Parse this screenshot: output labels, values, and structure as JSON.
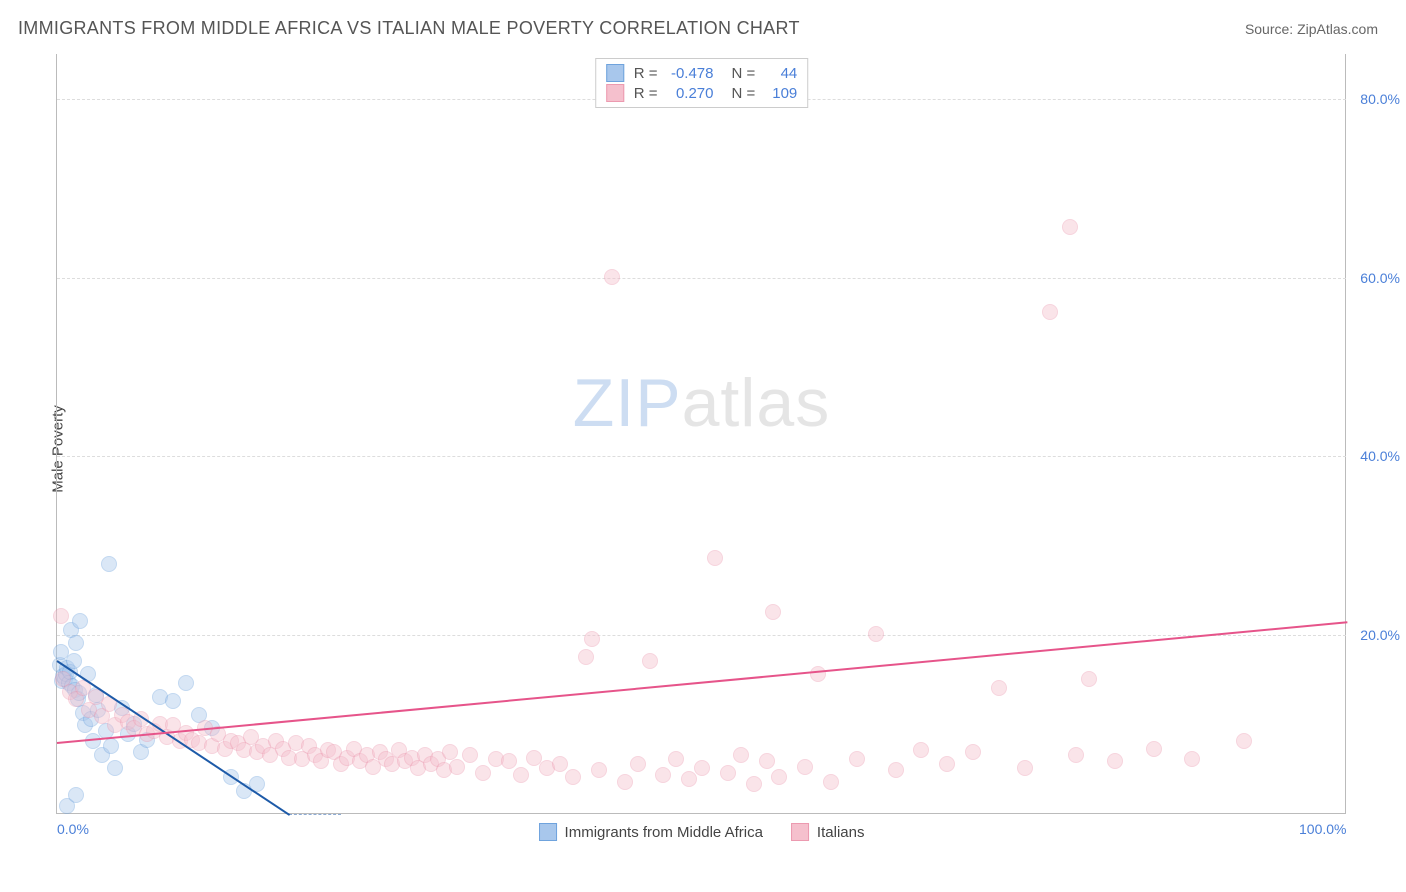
{
  "header": {
    "title": "IMMIGRANTS FROM MIDDLE AFRICA VS ITALIAN MALE POVERTY CORRELATION CHART",
    "source": "Source: ZipAtlas.com"
  },
  "ylabel": "Male Poverty",
  "watermark": {
    "part1": "ZIP",
    "part2": "atlas"
  },
  "chart": {
    "type": "scatter",
    "xlim": [
      0,
      100
    ],
    "ylim": [
      0,
      85
    ],
    "xticks": [
      {
        "v": 0,
        "label": "0.0%"
      },
      {
        "v": 100,
        "label": "100.0%"
      }
    ],
    "yticks": [
      {
        "v": 20,
        "label": "20.0%"
      },
      {
        "v": 40,
        "label": "40.0%"
      },
      {
        "v": 60,
        "label": "60.0%"
      },
      {
        "v": 80,
        "label": "80.0%"
      }
    ],
    "grid_color": "#dddddd",
    "axis_color": "#bbbbbb",
    "background_color": "#ffffff",
    "marker_radius": 8,
    "marker_opacity": 0.42,
    "series": [
      {
        "name": "Immigrants from Middle Africa",
        "color_fill": "#a8c7ec",
        "color_stroke": "#6fa3dd",
        "r": -0.478,
        "n": 44,
        "trend": {
          "x1": 0,
          "y1": 17.2,
          "x2": 18,
          "y2": 0,
          "color": "#1d5aa8",
          "extend_dash_to": 22
        },
        "points": [
          [
            0.2,
            16.5
          ],
          [
            0.3,
            18.0
          ],
          [
            0.4,
            14.8
          ],
          [
            0.5,
            15.3
          ],
          [
            0.6,
            15.0
          ],
          [
            0.7,
            15.6
          ],
          [
            0.8,
            16.2
          ],
          [
            0.9,
            14.5
          ],
          [
            1.0,
            15.8
          ],
          [
            1.1,
            20.5
          ],
          [
            1.2,
            14.2
          ],
          [
            1.3,
            17.0
          ],
          [
            1.4,
            13.8
          ],
          [
            1.5,
            19.0
          ],
          [
            1.6,
            12.8
          ],
          [
            1.7,
            13.4
          ],
          [
            1.8,
            21.5
          ],
          [
            2.0,
            11.2
          ],
          [
            2.2,
            9.8
          ],
          [
            2.4,
            15.5
          ],
          [
            2.6,
            10.5
          ],
          [
            2.8,
            8.0
          ],
          [
            3.0,
            13.2
          ],
          [
            3.2,
            11.5
          ],
          [
            3.5,
            6.5
          ],
          [
            3.8,
            9.2
          ],
          [
            4.0,
            27.8
          ],
          [
            4.2,
            7.5
          ],
          [
            4.5,
            5.0
          ],
          [
            5.0,
            11.8
          ],
          [
            5.5,
            8.8
          ],
          [
            6.0,
            10.0
          ],
          [
            6.5,
            6.8
          ],
          [
            7.0,
            8.2
          ],
          [
            8.0,
            13.0
          ],
          [
            9.0,
            12.5
          ],
          [
            10.0,
            14.5
          ],
          [
            11.0,
            11.0
          ],
          [
            12.0,
            9.5
          ],
          [
            13.5,
            4.0
          ],
          [
            14.5,
            2.5
          ],
          [
            15.5,
            3.2
          ],
          [
            0.8,
            0.8
          ],
          [
            1.5,
            2.0
          ]
        ]
      },
      {
        "name": "Italians",
        "color_fill": "#f5c0cd",
        "color_stroke": "#ec9ab0",
        "r": 0.27,
        "n": 109,
        "trend": {
          "x1": 0,
          "y1": 8.0,
          "x2": 100,
          "y2": 21.5,
          "color": "#e6548a"
        },
        "points": [
          [
            0.3,
            22.0
          ],
          [
            0.5,
            15.0
          ],
          [
            1.0,
            13.5
          ],
          [
            1.5,
            12.8
          ],
          [
            2.0,
            14.0
          ],
          [
            2.5,
            11.5
          ],
          [
            3.0,
            13.0
          ],
          [
            3.5,
            10.8
          ],
          [
            4.0,
            12.2
          ],
          [
            4.5,
            9.8
          ],
          [
            5.0,
            11.0
          ],
          [
            5.5,
            10.2
          ],
          [
            6.0,
            9.5
          ],
          [
            6.5,
            10.5
          ],
          [
            7.0,
            8.8
          ],
          [
            7.5,
            9.2
          ],
          [
            8.0,
            10.0
          ],
          [
            8.5,
            8.5
          ],
          [
            9.0,
            9.8
          ],
          [
            9.5,
            8.0
          ],
          [
            10.0,
            9.0
          ],
          [
            10.5,
            8.2
          ],
          [
            11.0,
            7.8
          ],
          [
            11.5,
            9.5
          ],
          [
            12.0,
            7.5
          ],
          [
            12.5,
            8.8
          ],
          [
            13.0,
            7.2
          ],
          [
            13.5,
            8.0
          ],
          [
            14.0,
            7.8
          ],
          [
            14.5,
            7.0
          ],
          [
            15.0,
            8.5
          ],
          [
            15.5,
            6.8
          ],
          [
            16.0,
            7.5
          ],
          [
            16.5,
            6.5
          ],
          [
            17.0,
            8.0
          ],
          [
            17.5,
            7.2
          ],
          [
            18.0,
            6.2
          ],
          [
            18.5,
            7.8
          ],
          [
            19.0,
            6.0
          ],
          [
            19.5,
            7.5
          ],
          [
            20.0,
            6.5
          ],
          [
            20.5,
            5.8
          ],
          [
            21.0,
            7.0
          ],
          [
            21.5,
            6.8
          ],
          [
            22.0,
            5.5
          ],
          [
            22.5,
            6.2
          ],
          [
            23.0,
            7.2
          ],
          [
            23.5,
            5.8
          ],
          [
            24.0,
            6.5
          ],
          [
            24.5,
            5.2
          ],
          [
            25.0,
            6.8
          ],
          [
            25.5,
            6.0
          ],
          [
            26.0,
            5.5
          ],
          [
            26.5,
            7.0
          ],
          [
            27.0,
            5.8
          ],
          [
            27.5,
            6.2
          ],
          [
            28.0,
            5.0
          ],
          [
            28.5,
            6.5
          ],
          [
            29.0,
            5.5
          ],
          [
            29.5,
            6.0
          ],
          [
            30.0,
            4.8
          ],
          [
            30.5,
            6.8
          ],
          [
            31.0,
            5.2
          ],
          [
            32.0,
            6.5
          ],
          [
            33.0,
            4.5
          ],
          [
            34.0,
            6.0
          ],
          [
            35.0,
            5.8
          ],
          [
            36.0,
            4.2
          ],
          [
            37.0,
            6.2
          ],
          [
            38.0,
            5.0
          ],
          [
            39.0,
            5.5
          ],
          [
            40.0,
            4.0
          ],
          [
            41.0,
            17.5
          ],
          [
            41.5,
            19.5
          ],
          [
            42.0,
            4.8
          ],
          [
            43.0,
            60.0
          ],
          [
            44.0,
            3.5
          ],
          [
            45.0,
            5.5
          ],
          [
            46.0,
            17.0
          ],
          [
            47.0,
            4.2
          ],
          [
            48.0,
            6.0
          ],
          [
            49.0,
            3.8
          ],
          [
            50.0,
            5.0
          ],
          [
            51.0,
            28.5
          ],
          [
            52.0,
            4.5
          ],
          [
            53.0,
            6.5
          ],
          [
            54.0,
            3.2
          ],
          [
            55.0,
            5.8
          ],
          [
            55.5,
            22.5
          ],
          [
            56.0,
            4.0
          ],
          [
            58.0,
            5.2
          ],
          [
            59.0,
            15.5
          ],
          [
            60.0,
            3.5
          ],
          [
            62.0,
            6.0
          ],
          [
            63.5,
            20.0
          ],
          [
            65.0,
            4.8
          ],
          [
            67.0,
            7.0
          ],
          [
            69.0,
            5.5
          ],
          [
            71.0,
            6.8
          ],
          [
            73.0,
            14.0
          ],
          [
            75.0,
            5.0
          ],
          [
            77.0,
            56.0
          ],
          [
            78.5,
            65.5
          ],
          [
            79.0,
            6.5
          ],
          [
            80.0,
            15.0
          ],
          [
            82.0,
            5.8
          ],
          [
            85.0,
            7.2
          ],
          [
            88.0,
            6.0
          ],
          [
            92.0,
            8.0
          ]
        ]
      }
    ]
  },
  "legend_top": {
    "rows": [
      {
        "swatch_fill": "#a8c7ec",
        "swatch_stroke": "#6fa3dd",
        "r_label": "R =",
        "r_val": "-0.478",
        "n_label": "N =",
        "n_val": "44"
      },
      {
        "swatch_fill": "#f5c0cd",
        "swatch_stroke": "#ec9ab0",
        "r_label": "R =",
        "r_val": "0.270",
        "n_label": "N =",
        "n_val": "109"
      }
    ]
  },
  "legend_bottom": {
    "items": [
      {
        "swatch_fill": "#a8c7ec",
        "swatch_stroke": "#6fa3dd",
        "label": "Immigrants from Middle Africa"
      },
      {
        "swatch_fill": "#f5c0cd",
        "swatch_stroke": "#ec9ab0",
        "label": "Italians"
      }
    ]
  }
}
